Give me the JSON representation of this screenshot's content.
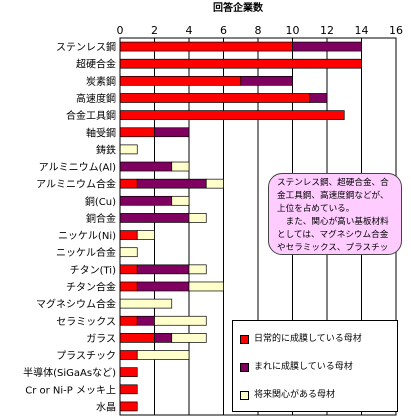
{
  "chart_data": {
    "type": "bar",
    "orientation": "horizontal",
    "stacked": true,
    "title": "回答企業数",
    "xlim": [
      0,
      16
    ],
    "x_ticks": [
      "0",
      "2",
      "4",
      "6",
      "8",
      "10",
      "12",
      "14",
      "16"
    ],
    "grid": true,
    "legend_position": "bottom-right",
    "categories": [
      "ステンレス鋼",
      "超硬合金",
      "炭素鋼",
      "高速度鋼",
      "合金工具鋼",
      "軸受鋼",
      "鋳鉄",
      "アルミニウム(Al)",
      "アルミニウム合金",
      "銅(Cu)",
      "銅合金",
      "ニッケル(Ni)",
      "ニッケル合金",
      "チタン(Ti)",
      "チタン合金",
      "マグネシウム合金",
      "セラミックス",
      "ガラス",
      "プラスチック",
      "半導体(SiGaAsなど)",
      "Cr or Ni-P メッキ上",
      "水晶"
    ],
    "series": [
      {
        "name": "日常的に成膜している母材",
        "color": "#ff0000",
        "values": [
          10,
          14,
          7,
          11,
          13,
          2,
          0,
          0,
          1,
          0,
          0,
          1,
          0,
          1,
          1,
          0,
          1,
          2,
          1,
          1,
          1,
          1
        ]
      },
      {
        "name": "まれに成膜している母材",
        "color": "#800060",
        "values": [
          4,
          0,
          3,
          1,
          0,
          2,
          0,
          3,
          4,
          3,
          4,
          0,
          0,
          3,
          3,
          0,
          1,
          1,
          0,
          0,
          0,
          0
        ]
      },
      {
        "name": "将来関心がある母材",
        "color": "#ffffcc",
        "values": [
          0,
          0,
          0,
          0,
          0,
          0,
          1,
          1,
          1,
          1,
          1,
          1,
          1,
          1,
          2,
          3,
          3,
          2,
          3,
          0,
          0,
          0
        ]
      }
    ]
  },
  "note": {
    "paragraph1": "ステンレス鋼、超硬合金、合金工具鋼、高速度鋼などが、上位を占めている。",
    "paragraph2": "また、関心が高い基板材料としては、マグネシウム合金やセラミックス、プラスチックなどが挙がっている。"
  }
}
